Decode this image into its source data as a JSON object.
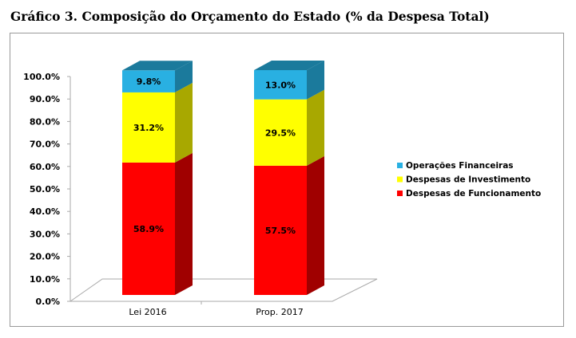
{
  "chart_data": {
    "type": "bar",
    "stacked": true,
    "three_d": true,
    "title": "Gráfico 3. Composição do Orçamento do Estado (% da Despesa Total)",
    "categories": [
      "Lei 2016",
      "Prop. 2017"
    ],
    "series": [
      {
        "name": "Despesas de Funcionamento",
        "values": [
          58.9,
          57.5
        ],
        "labels": [
          "58.9%",
          "57.5%"
        ],
        "color": "#ff0000",
        "side_color": "#a00000"
      },
      {
        "name": "Despesas de Investimento",
        "values": [
          31.2,
          29.5
        ],
        "labels": [
          "31.2%",
          "29.5%"
        ],
        "color": "#ffff00",
        "side_color": "#a8a800"
      },
      {
        "name": "Operações Financeiras",
        "values": [
          9.8,
          13.0
        ],
        "labels": [
          "9.8%",
          "13.0%"
        ],
        "color": "#29b0e2",
        "side_color": "#1b7a9c"
      }
    ],
    "ylim": [
      0,
      100
    ],
    "yticks": [
      "0.0%",
      "10.0%",
      "20.0%",
      "30.0%",
      "40.0%",
      "50.0%",
      "60.0%",
      "70.0%",
      "80.0%",
      "90.0%",
      "100.0%"
    ],
    "grid": false,
    "legend_position": "right"
  }
}
